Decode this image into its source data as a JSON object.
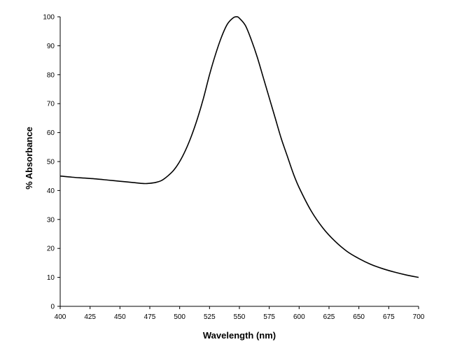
{
  "chart_data": {
    "type": "line",
    "title": "",
    "xlabel": "Wavelength (nm)",
    "ylabel": "% Absorbance",
    "xlim": [
      400,
      700
    ],
    "ylim": [
      0,
      100
    ],
    "xticks": [
      400,
      425,
      450,
      475,
      500,
      525,
      550,
      575,
      600,
      625,
      650,
      675,
      700
    ],
    "yticks": [
      0,
      10,
      20,
      30,
      40,
      50,
      60,
      70,
      80,
      90,
      100
    ],
    "grid": false,
    "legend": "none",
    "series": [
      {
        "x": [
          400,
          410,
          420,
          430,
          440,
          450,
          460,
          470,
          475,
          480,
          485,
          490,
          495,
          500,
          505,
          510,
          515,
          520,
          525,
          530,
          535,
          540,
          545,
          548,
          550,
          555,
          560,
          565,
          570,
          575,
          580,
          585,
          590,
          595,
          600,
          610,
          620,
          630,
          640,
          650,
          660,
          670,
          680,
          690,
          700
        ],
        "y": [
          45,
          44.6,
          44.3,
          44,
          43.6,
          43.2,
          42.8,
          42.4,
          42.5,
          42.8,
          43.5,
          45,
          47,
          50,
          54,
          59,
          65,
          72,
          80,
          87,
          93,
          97.5,
          99.7,
          100,
          99.5,
          97,
          92,
          86,
          79,
          72,
          65,
          58,
          52,
          46,
          41,
          33,
          27,
          22.5,
          19,
          16.5,
          14.5,
          13,
          11.8,
          10.8,
          10
        ]
      }
    ],
    "style": {
      "line_color": "#000000",
      "axis_color": "#000000",
      "background": "#ffffff"
    }
  }
}
